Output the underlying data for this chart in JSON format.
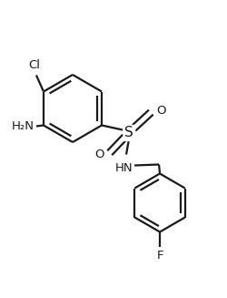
{
  "bg_color": "#ffffff",
  "line_color": "#1a1a1a",
  "label_color": "#1a1a1a",
  "lw": 1.6,
  "figsize": [
    2.5,
    3.27
  ],
  "dpi": 100,
  "cl_label": "Cl",
  "nh2_label": "H₂N",
  "s_label": "S",
  "hn_label": "HN",
  "f_label": "F",
  "o1_label": "O",
  "o2_label": "O",
  "font_size": 9.5
}
